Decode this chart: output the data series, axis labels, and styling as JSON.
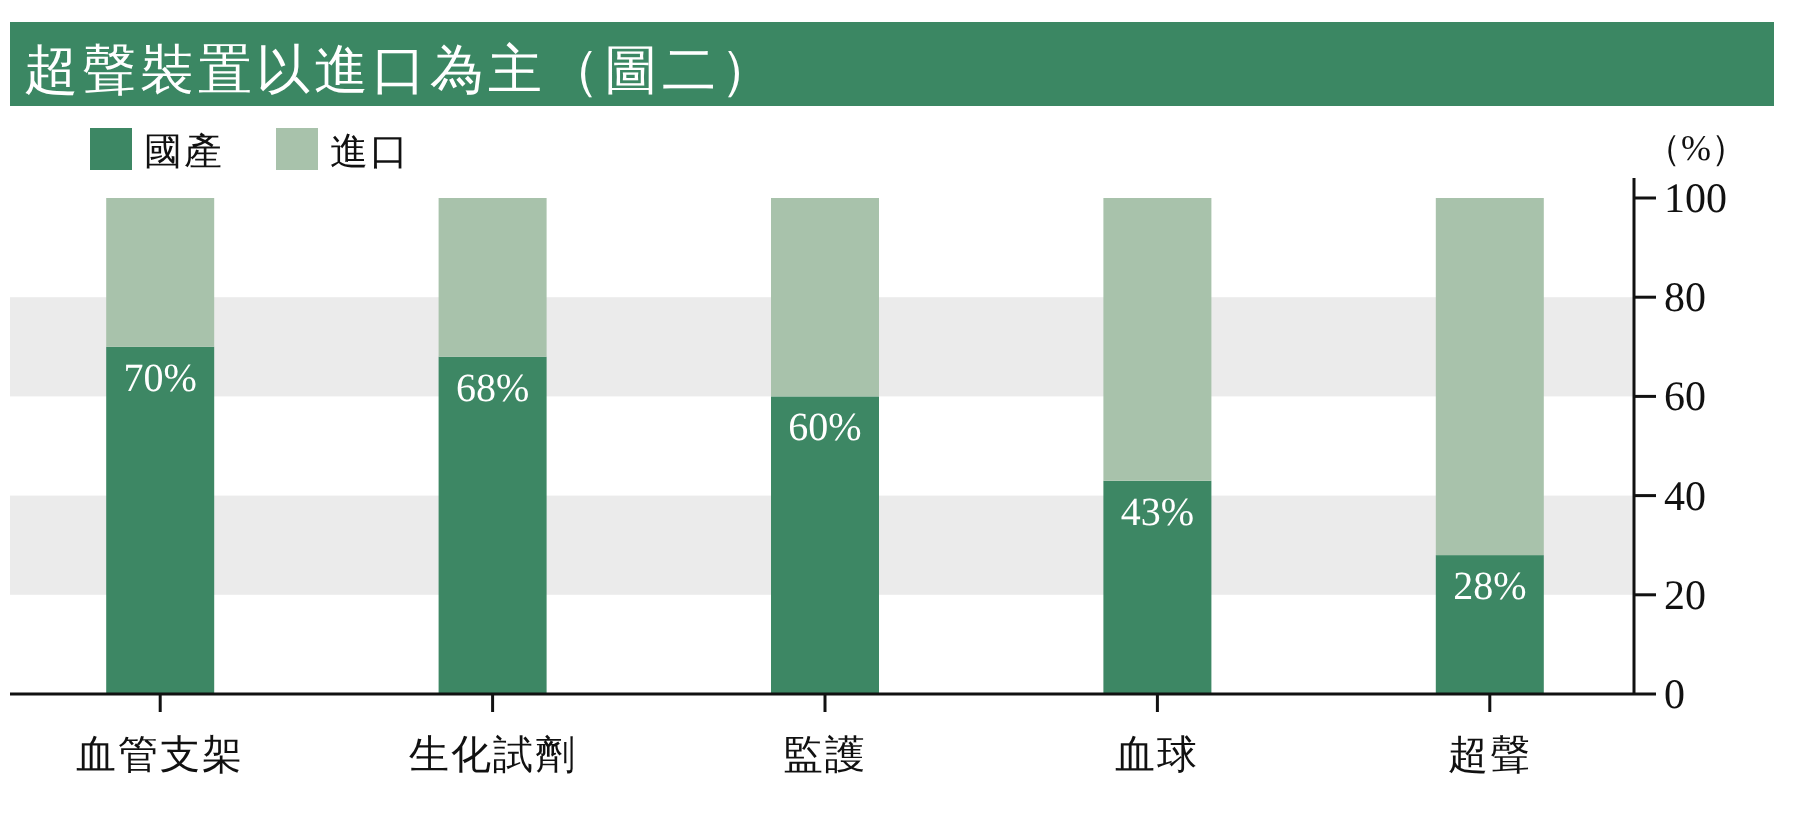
{
  "chart_data": {
    "type": "bar",
    "title": "超聲裝置以進口為主（圖二）",
    "ylabel": "（%）",
    "categories": [
      "血管支架",
      "生化試劑",
      "監護",
      "血球",
      "超聲"
    ],
    "stacked": true,
    "series": [
      {
        "name": "國產",
        "color": "#3d8764",
        "values": [
          70,
          68,
          60,
          43,
          28
        ],
        "value_labels": [
          "70%",
          "68%",
          "60%",
          "43%",
          "28%"
        ]
      },
      {
        "name": "進口",
        "color": "#a8c2ab",
        "values": [
          30,
          32,
          40,
          57,
          72
        ]
      }
    ],
    "ylim": [
      0,
      100
    ],
    "yticks": [
      0,
      20,
      40,
      60,
      80,
      100
    ],
    "bands": [
      {
        "axis": "y",
        "from": 20,
        "to": 40,
        "color": "#ebebeb"
      },
      {
        "axis": "y",
        "from": 60,
        "to": 80,
        "color": "#ebebeb"
      }
    ],
    "legend": "top left"
  }
}
